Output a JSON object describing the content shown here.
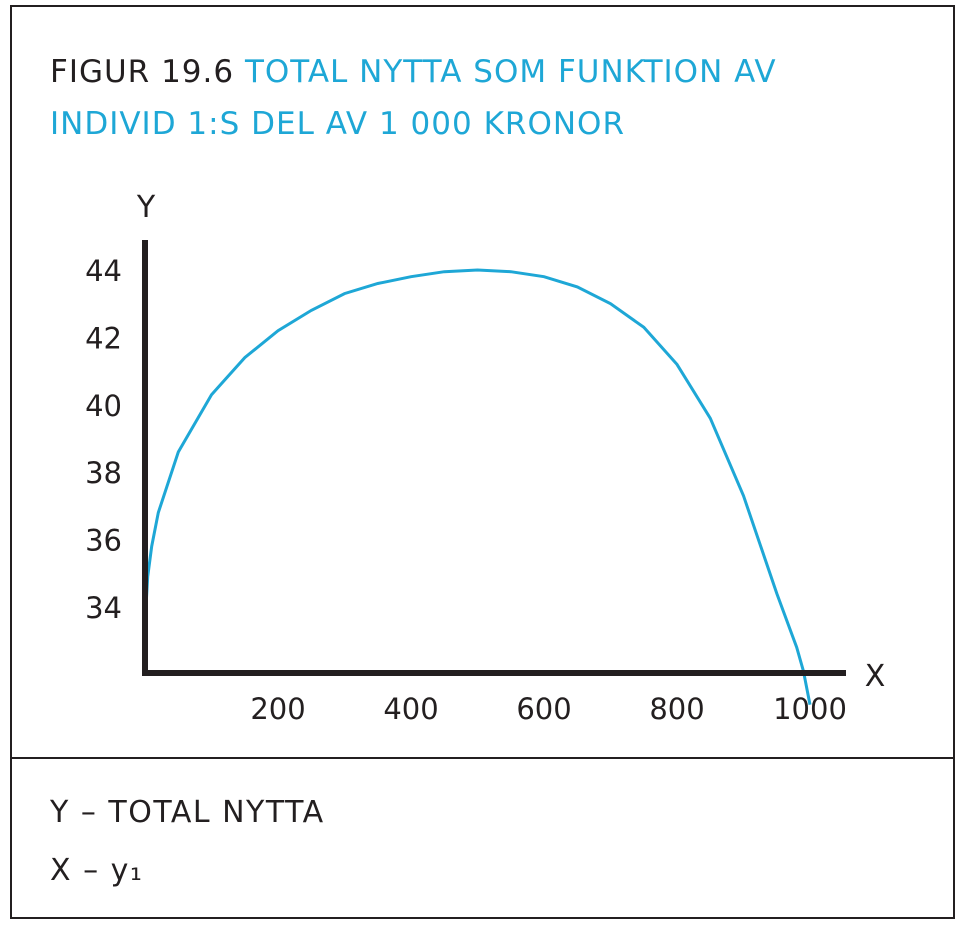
{
  "figure": {
    "number": "FIGUR 19.6",
    "title": "TOTAL NYTTA SOM FUNKTION AV INDIVID 1:S DEL AV 1 000 KRONOR"
  },
  "legend": {
    "line1": "Y – TOTAL NYTTA",
    "line2": "X – y₁"
  },
  "colors": {
    "curve": "#1ea7d6",
    "axes": "#231f20",
    "text": "#231f20"
  },
  "chart_data": {
    "type": "line",
    "xlabel": "X",
    "ylabel": "Y",
    "xlim": [
      0,
      1000
    ],
    "ylim": [
      31,
      45
    ],
    "xticks": [
      200,
      400,
      600,
      800,
      1000
    ],
    "yticks": [
      34,
      36,
      38,
      40,
      42,
      44
    ],
    "grid": false,
    "series": [
      {
        "x": [
          0,
          4,
          10,
          20,
          50,
          100,
          150,
          200,
          250,
          300,
          350,
          400,
          450,
          500,
          550,
          600,
          650,
          700,
          750,
          800,
          850,
          900,
          950,
          980,
          990,
          1000
        ],
        "y": [
          33.5,
          34.9,
          35.8,
          36.8,
          38.6,
          40.3,
          41.4,
          42.2,
          42.8,
          43.3,
          43.6,
          43.8,
          43.95,
          44.0,
          43.95,
          43.8,
          43.5,
          43.0,
          42.3,
          41.2,
          39.6,
          37.3,
          34.4,
          32.8,
          32.1,
          31.1
        ]
      }
    ]
  }
}
